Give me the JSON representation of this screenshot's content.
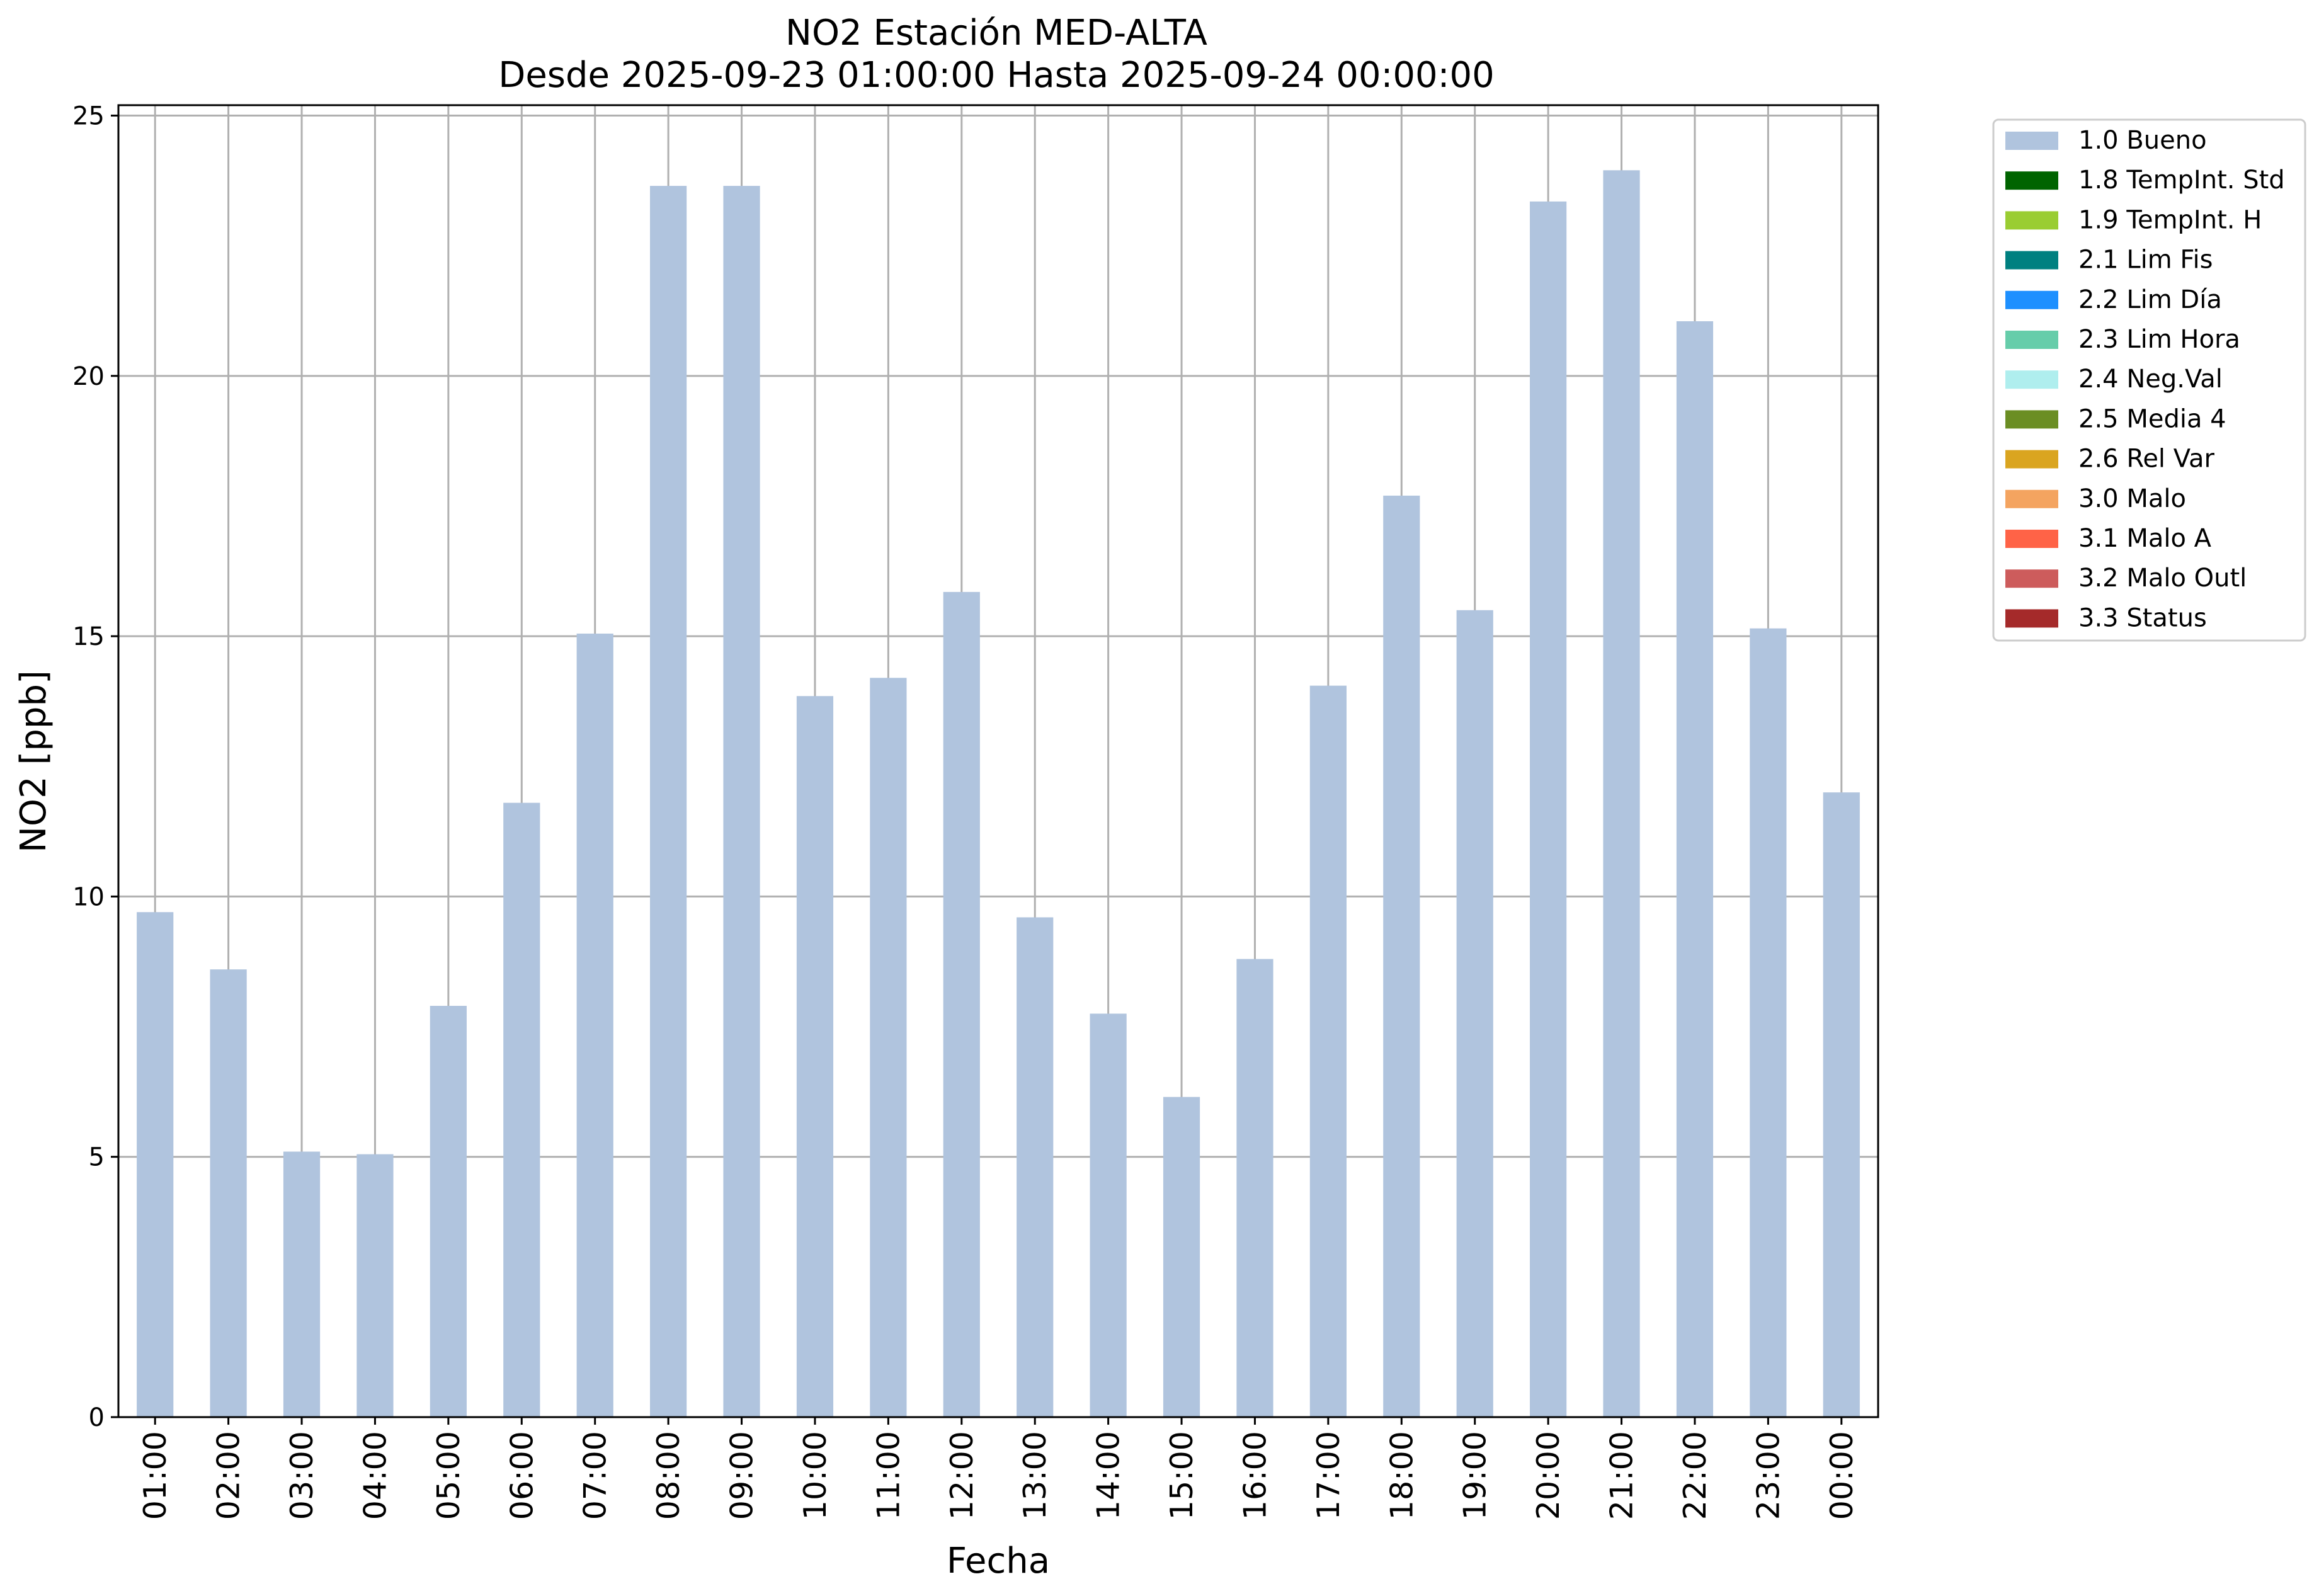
{
  "chart_data": {
    "type": "bar",
    "title": "NO2 Estación MED-ALTA",
    "subtitle": "Desde 2025-09-23 01:00:00 Hasta 2025-09-24 00:00:00",
    "xlabel": "Fecha",
    "ylabel": "NO2 [ppb]",
    "ylim": [
      0,
      25.2
    ],
    "yticks": [
      0,
      5,
      10,
      15,
      20,
      25
    ],
    "grid": true,
    "legend_position": "outside-right-top",
    "categories": [
      "01:00",
      "02:00",
      "03:00",
      "04:00",
      "05:00",
      "06:00",
      "07:00",
      "08:00",
      "09:00",
      "10:00",
      "11:00",
      "12:00",
      "13:00",
      "14:00",
      "15:00",
      "16:00",
      "17:00",
      "18:00",
      "19:00",
      "20:00",
      "21:00",
      "22:00",
      "23:00",
      "00:00"
    ],
    "series": [
      {
        "name": "1.0 Bueno",
        "color": "#b0c4de",
        "values": [
          9.7,
          8.6,
          5.1,
          5.05,
          7.9,
          11.8,
          15.05,
          23.65,
          23.65,
          13.85,
          14.2,
          15.85,
          9.6,
          7.75,
          6.15,
          8.8,
          14.05,
          17.7,
          15.5,
          23.35,
          23.95,
          21.05,
          15.15,
          12.0
        ]
      }
    ],
    "legend": [
      {
        "label": "1.0 Bueno",
        "color": "#b0c4de"
      },
      {
        "label": "1.8 TempInt. Std",
        "color": "#006400"
      },
      {
        "label": "1.9 TempInt. H",
        "color": "#9acd32"
      },
      {
        "label": "2.1 Lim Fis",
        "color": "#008080"
      },
      {
        "label": "2.2 Lim Día",
        "color": "#1e90ff"
      },
      {
        "label": "2.3 Lim Hora",
        "color": "#66cdaa"
      },
      {
        "label": "2.4 Neg.Val",
        "color": "#afeeee"
      },
      {
        "label": "2.5 Media 4",
        "color": "#6b8e23"
      },
      {
        "label": "2.6 Rel Var",
        "color": "#daa520"
      },
      {
        "label": "3.0 Malo",
        "color": "#f4a460"
      },
      {
        "label": "3.1 Malo A",
        "color": "#ff6347"
      },
      {
        "label": "3.2 Malo Outl",
        "color": "#cd5c5c"
      },
      {
        "label": "3.3 Status",
        "color": "#a52a2a"
      }
    ]
  }
}
